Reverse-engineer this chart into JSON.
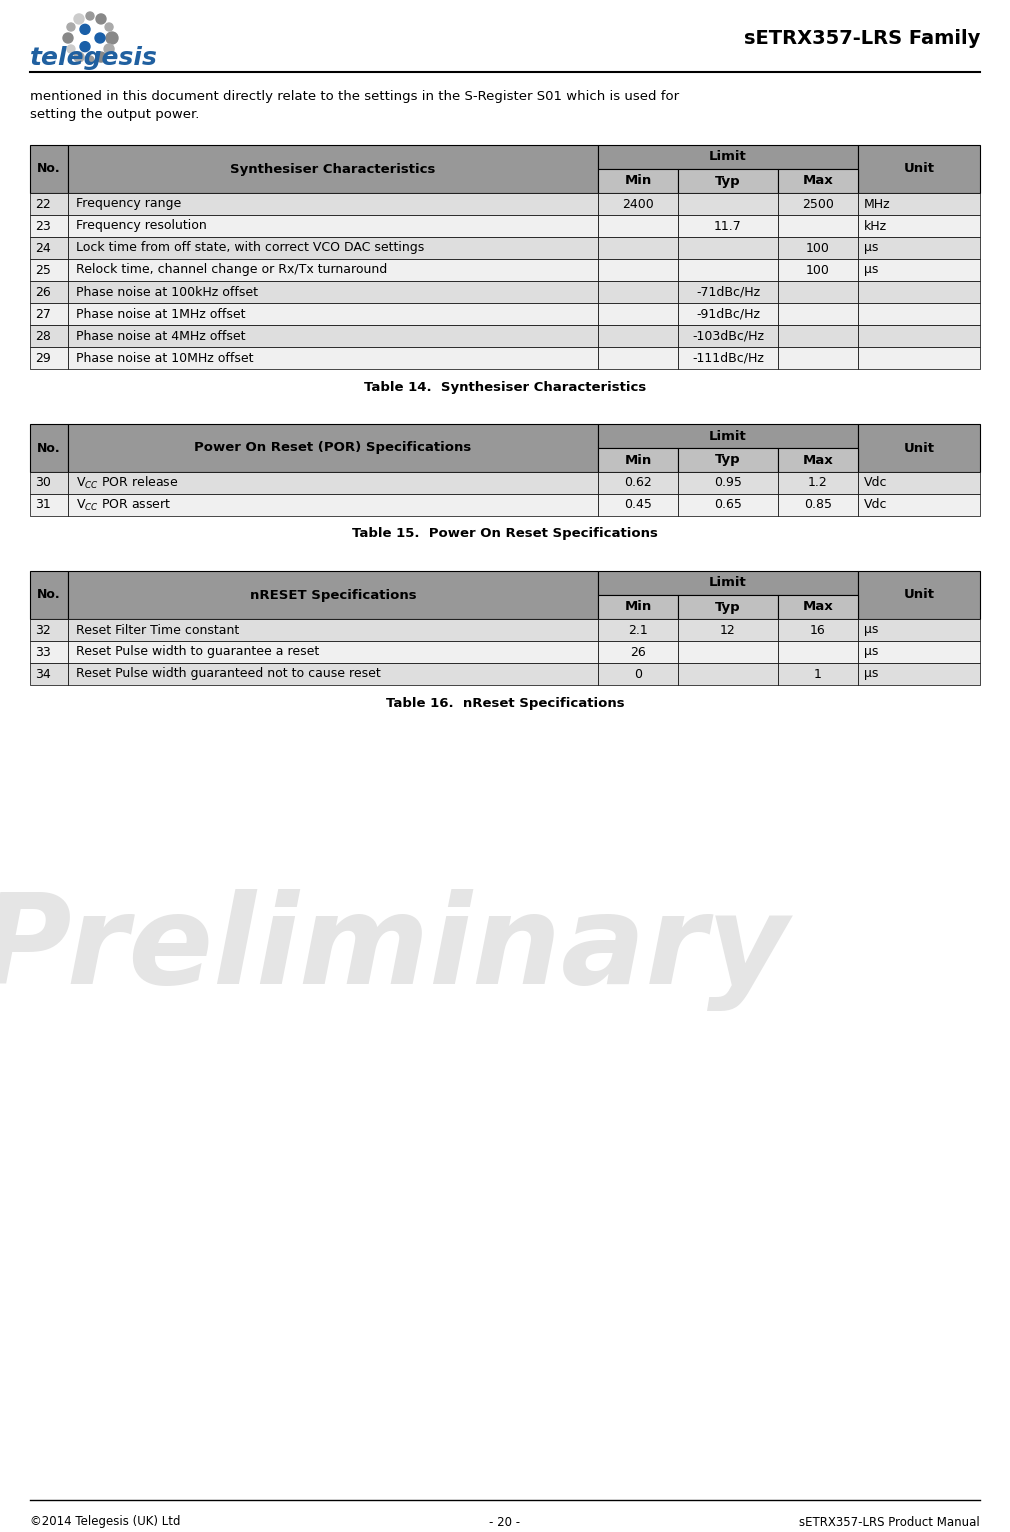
{
  "header_title": "sETRX357-LRS Family",
  "footer_left": "©2014 Telegesis (UK) Ltd",
  "footer_center": "- 20 -",
  "footer_right": "sETRX357-LRS Product Manual",
  "intro_line1": "mentioned in this document directly relate to the settings in the S-Register S01 which is used for",
  "intro_line2": "setting the output power.",
  "table1_title": "Table 14.  Synthesiser Characteristics",
  "table1_header_col2": "Synthesiser Characteristics",
  "table1_rows": [
    {
      "no": "22",
      "desc": "Frequency range",
      "min": "2400",
      "typ": "",
      "max": "2500",
      "unit": "MHz"
    },
    {
      "no": "23",
      "desc": "Frequency resolution",
      "min": "",
      "typ": "11.7",
      "max": "",
      "unit": "kHz"
    },
    {
      "no": "24",
      "desc": "Lock time from off state, with correct VCO DAC settings",
      "min": "",
      "typ": "",
      "max": "100",
      "unit": "µs"
    },
    {
      "no": "25",
      "desc": "Relock time, channel change or Rx/Tx turnaround",
      "min": "",
      "typ": "",
      "max": "100",
      "unit": "µs"
    },
    {
      "no": "26",
      "desc": "Phase noise at 100kHz offset",
      "min": "",
      "typ": "-71dBc/Hz",
      "max": "",
      "unit": ""
    },
    {
      "no": "27",
      "desc": "Phase noise at 1MHz offset",
      "min": "",
      "typ": "-91dBc/Hz",
      "max": "",
      "unit": ""
    },
    {
      "no": "28",
      "desc": "Phase noise at 4MHz offset",
      "min": "",
      "typ": "-103dBc/Hz",
      "max": "",
      "unit": ""
    },
    {
      "no": "29",
      "desc": "Phase noise at 10MHz offset",
      "min": "",
      "typ": "-111dBc/Hz",
      "max": "",
      "unit": ""
    }
  ],
  "table2_title": "Table 15.  Power On Reset Specifications",
  "table2_header_col2": "Power On Reset (POR) Specifications",
  "table2_rows": [
    {
      "no": "30",
      "desc": "V$_{CC}$ POR release",
      "min": "0.62",
      "typ": "0.95",
      "max": "1.2",
      "unit": "Vdc"
    },
    {
      "no": "31",
      "desc": "V$_{CC}$ POR assert",
      "min": "0.45",
      "typ": "0.65",
      "max": "0.85",
      "unit": "Vdc"
    }
  ],
  "table3_title": "Table 16.  nReset Specifications",
  "table3_header_col2": "nRESET Specifications",
  "table3_rows": [
    {
      "no": "32",
      "desc": "Reset Filter Time constant",
      "min": "2.1",
      "typ": "12",
      "max": "16",
      "unit": "µs"
    },
    {
      "no": "33",
      "desc": "Reset Pulse width to guarantee a reset",
      "min": "26",
      "typ": "",
      "max": "",
      "unit": "µs"
    },
    {
      "no": "34",
      "desc": "Reset Pulse width guaranteed not to cause reset",
      "min": "0",
      "typ": "",
      "max": "1",
      "unit": "µs"
    }
  ],
  "hdr_dark": "#989898",
  "hdr_light": "#c0c0c0",
  "row_bg_odd": "#dedede",
  "row_bg_even": "#f0f0f0",
  "wm_color": "#d0d0d0",
  "wm_alpha": 0.55
}
